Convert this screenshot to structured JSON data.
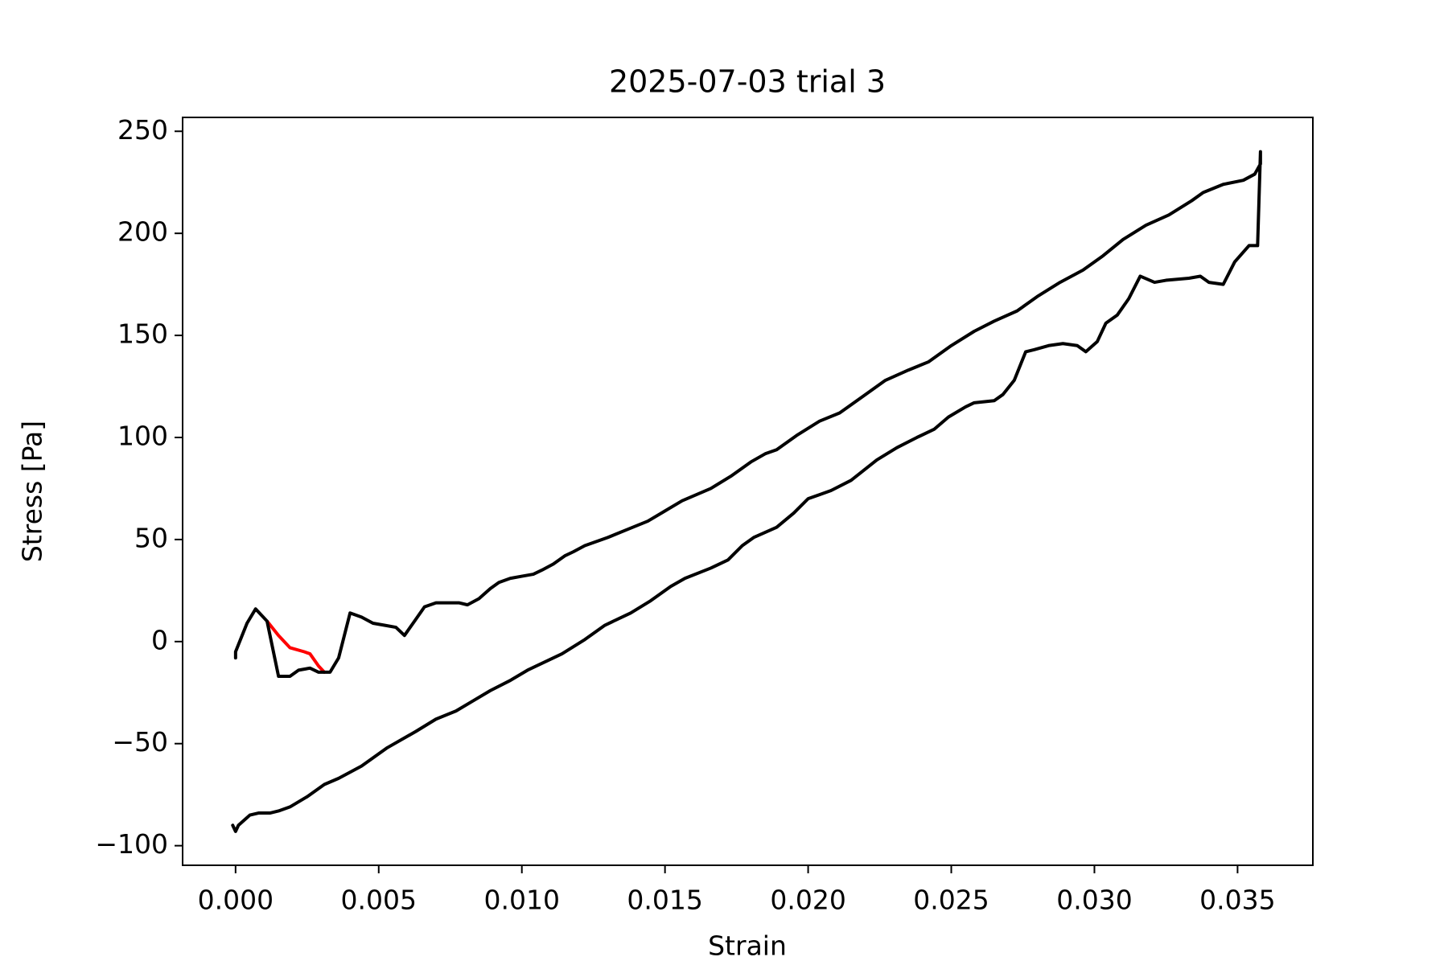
{
  "chart_data": {
    "type": "line",
    "title": "2025-07-03 trial 3",
    "xlabel": "Strain",
    "ylabel": "Stress [Pa]",
    "xlim": [
      -0.00185,
      0.03763
    ],
    "ylim": [
      -109.6,
      256.8
    ],
    "xticks": [
      {
        "value": 0,
        "label": "0.000"
      },
      {
        "value": 0.005,
        "label": "0.005"
      },
      {
        "value": 0.01,
        "label": "0.010"
      },
      {
        "value": 0.015,
        "label": "0.015"
      },
      {
        "value": 0.02,
        "label": "0.020"
      },
      {
        "value": 0.025,
        "label": "0.025"
      },
      {
        "value": 0.03,
        "label": "0.030"
      },
      {
        "value": 0.035,
        "label": "0.035"
      }
    ],
    "yticks": [
      {
        "value": -100,
        "label": "−100"
      },
      {
        "value": -50,
        "label": "−50"
      },
      0,
      50,
      100,
      150,
      200,
      250
    ],
    "grid": false,
    "series": [
      {
        "color": "#ff0000",
        "x": [
          0.0011,
          0.0015,
          0.0019,
          0.0024,
          0.0026,
          0.0029,
          0.0031
        ],
        "values": [
          10,
          3,
          -3,
          -5,
          -6,
          -12,
          -15
        ]
      },
      {
        "color": "#000000",
        "x": [
          0,
          0,
          0.0004,
          0.0007,
          0.0011,
          0.0015,
          0.0019,
          0.0022,
          0.0026,
          0.0029,
          0.0033,
          0.0036,
          0.004,
          0.0044,
          0.0048,
          0.0052,
          0.0056,
          0.0059,
          0.0062,
          0.0066,
          0.007,
          0.0074,
          0.0078,
          0.0081,
          0.0085,
          0.0089,
          0.0092,
          0.0096,
          0.01,
          0.0104,
          0.0107,
          0.0111,
          0.0115,
          0.0118,
          0.0122,
          0.013,
          0.0137,
          0.0144,
          0.015,
          0.0156,
          0.0166,
          0.0173,
          0.018,
          0.0185,
          0.0189,
          0.0196,
          0.0204,
          0.0211,
          0.0219,
          0.0227,
          0.0235,
          0.0242,
          0.025,
          0.0258,
          0.0265,
          0.0273,
          0.028,
          0.0288,
          0.0296,
          0.0303,
          0.031,
          0.0318,
          0.0326,
          0.0334,
          0.0338,
          0.0345,
          0.0352,
          0.0356,
          0.0358,
          0.0358,
          0.0357,
          0.0354,
          0.0349,
          0.0345,
          0.034,
          0.0337,
          0.0333,
          0.0325,
          0.0321,
          0.0316,
          0.0312,
          0.0308,
          0.0304,
          0.0301,
          0.0297,
          0.0294,
          0.0289,
          0.0284,
          0.0279,
          0.0276,
          0.0272,
          0.0268,
          0.0265,
          0.0258,
          0.0255,
          0.0249,
          0.0244,
          0.0238,
          0.0231,
          0.0224,
          0.0215,
          0.0208,
          0.02,
          0.0195,
          0.0189,
          0.0181,
          0.0177,
          0.0172,
          0.0166,
          0.0157,
          0.0152,
          0.0145,
          0.0138,
          0.0129,
          0.0122,
          0.0114,
          0.0108,
          0.0102,
          0.0096,
          0.0089,
          0.0083,
          0.0077,
          0.007,
          0.0063,
          0.0053,
          0.0044,
          0.0036,
          0.0031,
          0.0025,
          0.0019,
          0.0015,
          0.0012,
          0.0008,
          0.0005,
          0.0001,
          0,
          -0.0001
        ],
        "values": [
          -8,
          -5,
          9,
          16,
          10,
          -17,
          -17,
          -14,
          -13,
          -15,
          -15,
          -8,
          14,
          12,
          9,
          8,
          7,
          3,
          9,
          17,
          19,
          19,
          19,
          18,
          21,
          26,
          29,
          31,
          32,
          33,
          35,
          38,
          42,
          44,
          47,
          51,
          55,
          59,
          64,
          69,
          75,
          81,
          88,
          92,
          94,
          101,
          108,
          112,
          120,
          128,
          133,
          137,
          145,
          152,
          157,
          162,
          169,
          176,
          182,
          189,
          197,
          204,
          209,
          216,
          220,
          224,
          226,
          229,
          234,
          240,
          194,
          194,
          186,
          175,
          176,
          179,
          178,
          177,
          176,
          179,
          168,
          160,
          156,
          147,
          142,
          145,
          146,
          145,
          143,
          142,
          128,
          121,
          118,
          117,
          115,
          110,
          104,
          100,
          95,
          89,
          79,
          74,
          70,
          63,
          56,
          51,
          47,
          40,
          36,
          31,
          27,
          20,
          14,
          8,
          1,
          -6,
          -10,
          -14,
          -19,
          -24,
          -29,
          -34,
          -38,
          -44,
          -52,
          -61,
          -67,
          -70,
          -76,
          -81,
          -83,
          -84,
          -84,
          -85,
          -90,
          -93,
          -90
        ]
      }
    ]
  }
}
